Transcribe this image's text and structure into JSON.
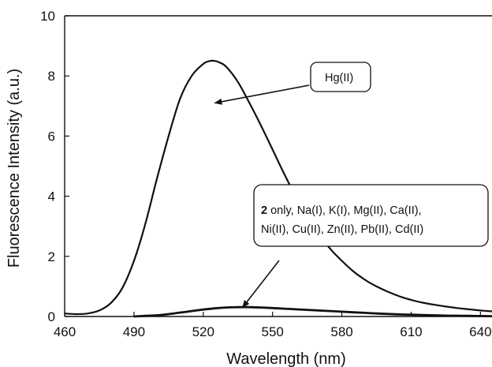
{
  "chart_data": {
    "type": "line",
    "xlabel": "Wavelength (nm)",
    "ylabel": "Fluorescence Intensity (a.u.)",
    "xlim": [
      460,
      645
    ],
    "ylim": [
      0,
      10
    ],
    "x_ticks": [
      "460",
      "490",
      "520",
      "550",
      "580",
      "610",
      "640"
    ],
    "y_ticks": [
      "0",
      "2",
      "4",
      "6",
      "8",
      "10"
    ],
    "grid": false,
    "legend": "none",
    "series": [
      {
        "color": "#111111",
        "x": [
          460,
          465,
          470,
          475,
          480,
          485,
          490,
          495,
          500,
          505,
          510,
          515,
          520,
          523,
          525,
          527,
          530,
          535,
          540,
          545,
          550,
          555,
          560,
          565,
          570,
          575,
          580,
          585,
          590,
          595,
          600,
          605,
          610,
          615,
          620,
          625,
          630,
          635,
          640,
          645
        ],
        "y": [
          0.1,
          0.08,
          0.1,
          0.2,
          0.45,
          0.95,
          1.85,
          3.1,
          4.6,
          6.0,
          7.25,
          8.0,
          8.4,
          8.5,
          8.5,
          8.45,
          8.3,
          7.8,
          7.1,
          6.35,
          5.55,
          4.75,
          4.0,
          3.35,
          2.75,
          2.25,
          1.85,
          1.5,
          1.22,
          1.0,
          0.82,
          0.67,
          0.55,
          0.46,
          0.39,
          0.33,
          0.28,
          0.24,
          0.2,
          0.17
        ]
      },
      {
        "color": "#111111",
        "x": [
          490,
          495,
          500,
          505,
          510,
          515,
          520,
          525,
          530,
          535,
          540,
          545,
          550,
          555,
          560,
          565,
          570,
          575,
          580,
          585,
          590,
          595,
          600,
          605,
          610,
          615,
          620,
          625,
          630,
          635,
          640,
          645
        ],
        "y": [
          0.0,
          0.02,
          0.04,
          0.08,
          0.13,
          0.18,
          0.23,
          0.27,
          0.3,
          0.31,
          0.31,
          0.3,
          0.28,
          0.26,
          0.24,
          0.22,
          0.2,
          0.18,
          0.16,
          0.14,
          0.12,
          0.1,
          0.085,
          0.07,
          0.06,
          0.05,
          0.04,
          0.03,
          0.025,
          0.02,
          0.015,
          0.01
        ]
      }
    ],
    "annotations": [
      {
        "lines": [
          [
            "Hg(II)"
          ]
        ],
        "arrow_to": [
          525,
          7.1
        ]
      },
      {
        "lines": [
          [
            {
              "text": "2",
              "bold": true
            },
            {
              "text": " only, Na(I), K(I), Mg(II), Ca(II),",
              "bold": false
            }
          ],
          [
            {
              "text": "Ni(II), Cu(II), Zn(II), Pb(II), Cd(II)",
              "bold": false
            }
          ]
        ],
        "arrow_to": [
          537,
          0.3
        ]
      }
    ]
  }
}
